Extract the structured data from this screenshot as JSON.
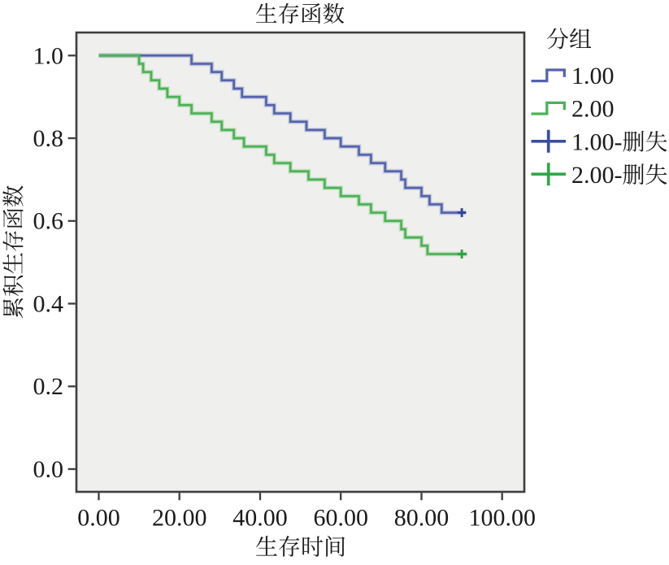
{
  "page": {
    "background": "#ffffff"
  },
  "title": "生存函数",
  "axes": {
    "x_title": "生存时间",
    "y_title": "累积生存函数",
    "x_tick_labels": [
      "0.00",
      "20.00",
      "40.00",
      "60.00",
      "80.00",
      "100.00"
    ],
    "y_tick_labels": [
      "0.0",
      "0.2",
      "0.4",
      "0.6",
      "0.8",
      "1.0"
    ]
  },
  "legend": {
    "title": "分组",
    "items": [
      {
        "label": "1.00",
        "symbol": "step-line",
        "color": "#5363ac"
      },
      {
        "label": "2.00",
        "symbol": "step-line",
        "color": "#4bb254"
      },
      {
        "label": "1.00-删失",
        "symbol": "plus",
        "color": "#3a4da3"
      },
      {
        "label": "2.00-删失",
        "symbol": "plus",
        "color": "#2fa748"
      }
    ]
  },
  "colors": {
    "panel_background": "#efefed",
    "frame": "#3d3d3d",
    "text": "#1a1a1a",
    "group1_line": "#5363ac",
    "group2_line": "#4bb254",
    "group1_censor": "#33429b",
    "group2_censor": "#2aa244"
  },
  "chart_data": {
    "type": "line",
    "subtype": "kaplan-meier-step-survival",
    "title": "生存函数",
    "xlabel": "生存时间",
    "ylabel": "累积生存函数",
    "xlim": [
      0,
      100
    ],
    "ylim": [
      0.0,
      1.0
    ],
    "x_ticks": [
      0,
      20,
      40,
      60,
      80,
      100
    ],
    "y_ticks": [
      0.0,
      0.2,
      0.4,
      0.6,
      0.8,
      1.0
    ],
    "grid": false,
    "legend_position": "right-outside",
    "series": [
      {
        "name": "1.00",
        "color": "#5363ac",
        "censor_color": "#33429b",
        "start": [
          0,
          1.0
        ],
        "drops": [
          [
            23,
            0.98
          ],
          [
            28,
            0.96
          ],
          [
            30.5,
            0.94
          ],
          [
            33.5,
            0.92
          ],
          [
            35.5,
            0.9
          ],
          [
            41.5,
            0.88
          ],
          [
            43.5,
            0.86
          ],
          [
            47.5,
            0.84
          ],
          [
            51.5,
            0.82
          ],
          [
            56,
            0.8
          ],
          [
            60,
            0.78
          ],
          [
            64.5,
            0.76
          ],
          [
            67.5,
            0.74
          ],
          [
            71,
            0.72
          ],
          [
            75,
            0.7
          ],
          [
            76,
            0.68
          ],
          [
            80,
            0.66
          ],
          [
            82,
            0.64
          ],
          [
            85,
            0.62
          ]
        ],
        "censored": [
          [
            90,
            0.62
          ]
        ],
        "line_end": 91
      },
      {
        "name": "2.00",
        "color": "#4bb254",
        "censor_color": "#2aa244",
        "start": [
          0,
          1.0
        ],
        "drops": [
          [
            10,
            0.98
          ],
          [
            11,
            0.96
          ],
          [
            13,
            0.94
          ],
          [
            15,
            0.92
          ],
          [
            17,
            0.9
          ],
          [
            20,
            0.88
          ],
          [
            23,
            0.86
          ],
          [
            28,
            0.84
          ],
          [
            30.5,
            0.82
          ],
          [
            33.5,
            0.8
          ],
          [
            36,
            0.78
          ],
          [
            41.5,
            0.76
          ],
          [
            43.5,
            0.74
          ],
          [
            47.5,
            0.72
          ],
          [
            52,
            0.7
          ],
          [
            56,
            0.68
          ],
          [
            60,
            0.66
          ],
          [
            64.5,
            0.64
          ],
          [
            67.5,
            0.62
          ],
          [
            71,
            0.6
          ],
          [
            75,
            0.58
          ],
          [
            76,
            0.56
          ],
          [
            80,
            0.54
          ],
          [
            81.5,
            0.52
          ]
        ],
        "censored": [
          [
            90,
            0.52
          ]
        ],
        "line_end": 91.3
      }
    ]
  }
}
